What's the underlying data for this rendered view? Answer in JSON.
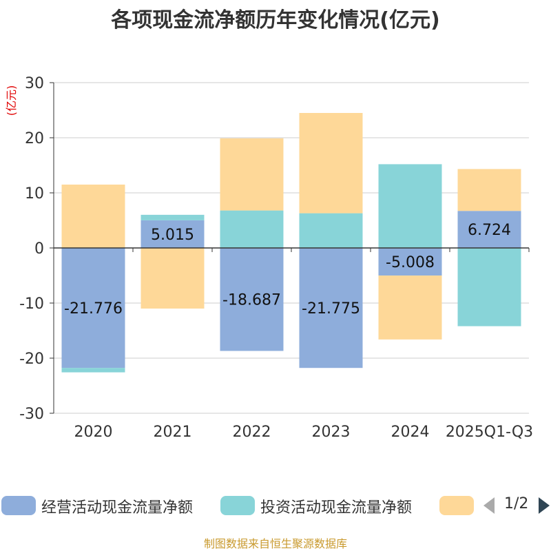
{
  "title": "各项现金流净额历年变化情况(亿元)",
  "source": "制图数据来自恒生聚源数据库",
  "legend": {
    "items": [
      {
        "label": "经营活动现金流量净额",
        "color": "#8eaddb"
      },
      {
        "label": "投资活动现金流量净额",
        "color": "#88d4d8"
      },
      {
        "label": "",
        "color": "#fed898"
      }
    ],
    "pager": "1/2"
  },
  "chart_data": {
    "type": "bar",
    "stacked": true,
    "ylabel": "(亿元)",
    "ylim": [
      -30,
      30
    ],
    "yticks": [
      30,
      20,
      10,
      0,
      -10,
      -20,
      -30
    ],
    "grid": true,
    "categories": [
      "2020",
      "2021",
      "2022",
      "2023",
      "2024",
      "2025Q1-Q3"
    ],
    "series": [
      {
        "name": "经营活动现金流量净额",
        "color": "#8eaddb",
        "values": [
          -21.776,
          5.015,
          -18.687,
          -21.775,
          -5.008,
          6.724
        ],
        "data_labels": [
          "-21.776",
          "5.015",
          "-18.687",
          "-21.775",
          "-5.008",
          "6.724"
        ]
      },
      {
        "name": "投资活动现金流量净额",
        "color": "#88d4d8",
        "values": [
          -0.8,
          1.0,
          6.8,
          6.3,
          15.2,
          -14.2
        ]
      },
      {
        "color": "#fed898",
        "values": [
          11.5,
          -11.0,
          13.1,
          18.2,
          -11.6,
          7.6
        ]
      }
    ]
  }
}
